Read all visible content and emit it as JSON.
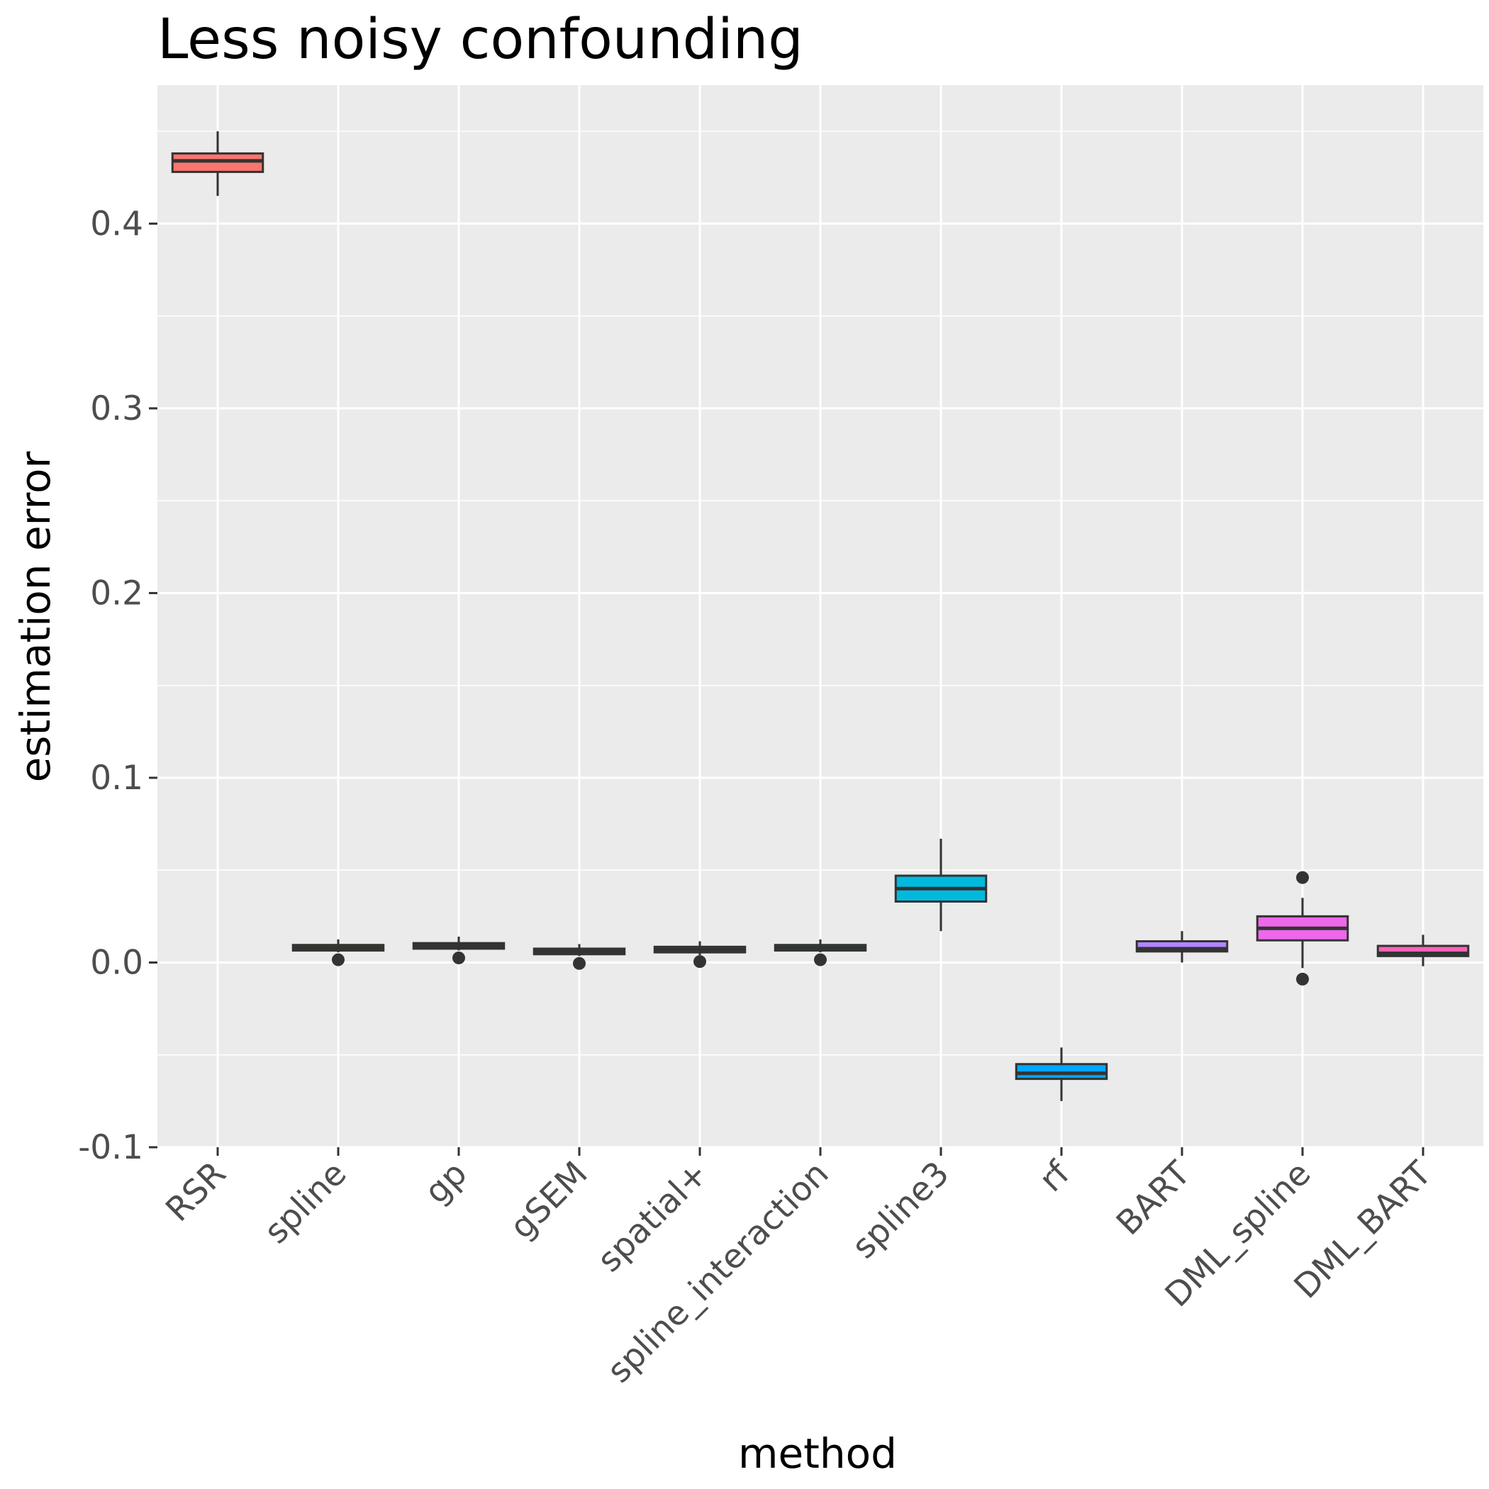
{
  "chart_data": {
    "type": "boxplot",
    "title": "Less noisy confounding",
    "xlabel": "method",
    "ylabel": "estimation error",
    "ylim": [
      -0.1,
      0.475
    ],
    "y_ticks": [
      -0.1,
      0.0,
      0.1,
      0.2,
      0.3,
      0.4
    ],
    "y_tick_labels": [
      "-0.1",
      "0.0",
      "0.1",
      "0.2",
      "0.3",
      "0.4"
    ],
    "grid": true,
    "legend": "none",
    "categories": [
      "RSR",
      "spline",
      "gp",
      "gSEM",
      "spatial+",
      "spline_interaction",
      "spline3",
      "rf",
      "BART",
      "DML_spline",
      "DML_BART"
    ],
    "boxes": [
      {
        "category": "RSR",
        "color": "#F8766D",
        "lower_whisker": 0.415,
        "q1": 0.428,
        "median": 0.434,
        "q3": 0.438,
        "upper_whisker": 0.45,
        "outliers": []
      },
      {
        "category": "spline",
        "color": "#DB8E00",
        "lower_whisker": 0.0055,
        "q1": 0.0065,
        "median": 0.008,
        "q3": 0.0095,
        "upper_whisker": 0.0125,
        "outliers": [
          0.0015
        ]
      },
      {
        "category": "gp",
        "color": "#AEA200",
        "lower_whisker": 0.0065,
        "q1": 0.0075,
        "median": 0.009,
        "q3": 0.0105,
        "upper_whisker": 0.014,
        "outliers": [
          0.0025
        ]
      },
      {
        "category": "gSEM",
        "color": "#64B200",
        "lower_whisker": 0.0035,
        "q1": 0.0045,
        "median": 0.006,
        "q3": 0.0075,
        "upper_whisker": 0.01,
        "outliers": [
          -0.0005
        ]
      },
      {
        "category": "spatial+",
        "color": "#00BD5C",
        "lower_whisker": 0.004,
        "q1": 0.0055,
        "median": 0.007,
        "q3": 0.0085,
        "upper_whisker": 0.0115,
        "outliers": [
          0.0005
        ]
      },
      {
        "category": "spline_interaction",
        "color": "#00C1A7",
        "lower_whisker": 0.0055,
        "q1": 0.0065,
        "median": 0.008,
        "q3": 0.0095,
        "upper_whisker": 0.0125,
        "outliers": [
          0.0015
        ]
      },
      {
        "category": "spline3",
        "color": "#00BADE",
        "lower_whisker": 0.017,
        "q1": 0.033,
        "median": 0.04,
        "q3": 0.047,
        "upper_whisker": 0.067,
        "outliers": []
      },
      {
        "category": "rf",
        "color": "#00A6FF",
        "lower_whisker": -0.075,
        "q1": -0.063,
        "median": -0.06,
        "q3": -0.055,
        "upper_whisker": -0.046,
        "outliers": []
      },
      {
        "category": "BART",
        "color": "#B385FF",
        "lower_whisker": 0.0,
        "q1": 0.006,
        "median": 0.0075,
        "q3": 0.0115,
        "upper_whisker": 0.017,
        "outliers": []
      },
      {
        "category": "DML_spline",
        "color": "#EF67EB",
        "lower_whisker": -0.003,
        "q1": 0.012,
        "median": 0.0185,
        "q3": 0.025,
        "upper_whisker": 0.035,
        "outliers": [
          0.046,
          -0.009
        ]
      },
      {
        "category": "DML_BART",
        "color": "#FF63B6",
        "lower_whisker": -0.002,
        "q1": 0.0035,
        "median": 0.005,
        "q3": 0.009,
        "upper_whisker": 0.015,
        "outliers": []
      }
    ]
  }
}
